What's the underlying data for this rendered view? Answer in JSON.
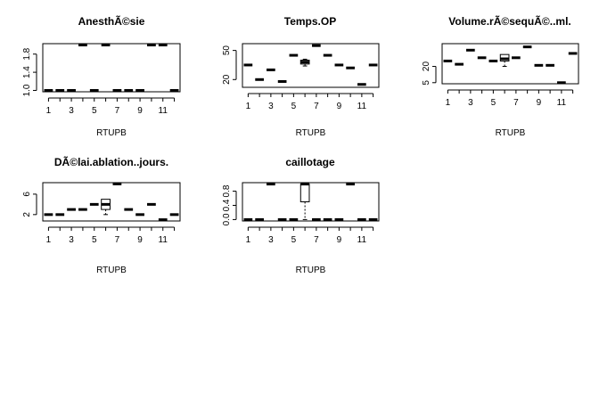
{
  "chart_data": [
    {
      "type": "boxplot",
      "title": "AnesthÃ©sie",
      "xlabel": "RTUPB",
      "ylabel": "",
      "ylim": [
        0.97,
        2.03
      ],
      "yticks": [
        "1.0",
        "1.4",
        "1.8"
      ],
      "xticks": [
        "1",
        "3",
        "5",
        "7",
        "9",
        "11"
      ],
      "categories": [
        "1",
        "2",
        "3",
        "4",
        "5",
        "6",
        "7",
        "8",
        "9",
        "10",
        "11",
        "12"
      ],
      "boxes": [
        {
          "min": 1,
          "q1": 1,
          "median": 1,
          "q3": 1,
          "max": 1
        },
        {
          "min": 1,
          "q1": 1,
          "median": 1,
          "q3": 1,
          "max": 1
        },
        {
          "min": 1,
          "q1": 1,
          "median": 1,
          "q3": 1,
          "max": 1
        },
        {
          "min": 2,
          "q1": 2,
          "median": 2,
          "q3": 2,
          "max": 2
        },
        {
          "min": 1,
          "q1": 1,
          "median": 1,
          "q3": 1,
          "max": 1
        },
        {
          "min": 2,
          "q1": 2,
          "median": 2,
          "q3": 2,
          "max": 2
        },
        {
          "min": 1,
          "q1": 1,
          "median": 1,
          "q3": 1,
          "max": 1
        },
        {
          "min": 1,
          "q1": 1,
          "median": 1,
          "q3": 1,
          "max": 1
        },
        {
          "min": 1,
          "q1": 1,
          "median": 1,
          "q3": 1,
          "max": 1
        },
        {
          "min": 2,
          "q1": 2,
          "median": 2,
          "q3": 2,
          "max": 2
        },
        {
          "min": 2,
          "q1": 2,
          "median": 2,
          "q3": 2,
          "max": 2
        },
        {
          "min": 1,
          "q1": 1,
          "median": 1,
          "q3": 1,
          "max": 1
        }
      ]
    },
    {
      "type": "boxplot",
      "title": "Temps.OP",
      "xlabel": "RTUPB",
      "ylabel": "",
      "ylim": [
        12,
        57
      ],
      "yticks": [
        "20",
        "50"
      ],
      "xticks": [
        "1",
        "3",
        "5",
        "7",
        "9",
        "11"
      ],
      "categories": [
        "1",
        "2",
        "3",
        "4",
        "5",
        "6",
        "7",
        "8",
        "9",
        "10",
        "11",
        "12"
      ],
      "boxes": [
        {
          "min": 35,
          "q1": 35,
          "median": 35,
          "q3": 35,
          "max": 35
        },
        {
          "min": 20,
          "q1": 20,
          "median": 20,
          "q3": 20,
          "max": 20
        },
        {
          "min": 30,
          "q1": 30,
          "median": 30,
          "q3": 30,
          "max": 30
        },
        {
          "min": 18,
          "q1": 18,
          "median": 18,
          "q3": 18,
          "max": 18
        },
        {
          "min": 45,
          "q1": 45,
          "median": 45,
          "q3": 45,
          "max": 45
        },
        {
          "min": 34,
          "q1": 36,
          "median": 38,
          "q3": 40,
          "max": 41
        },
        {
          "min": 55,
          "q1": 55,
          "median": 55,
          "q3": 55,
          "max": 55
        },
        {
          "min": 45,
          "q1": 45,
          "median": 45,
          "q3": 45,
          "max": 45
        },
        {
          "min": 35,
          "q1": 35,
          "median": 35,
          "q3": 35,
          "max": 35
        },
        {
          "min": 32,
          "q1": 32,
          "median": 32,
          "q3": 32,
          "max": 32
        },
        {
          "min": 15,
          "q1": 15,
          "median": 15,
          "q3": 15,
          "max": 15
        },
        {
          "min": 35,
          "q1": 35,
          "median": 35,
          "q3": 35,
          "max": 35
        }
      ]
    },
    {
      "type": "boxplot",
      "title": "Volume.rÃ©sequÃ©..ml.",
      "xlabel": "RTUPB",
      "ylabel": "",
      "ylim": [
        4,
        41
      ],
      "yticks": [
        "5",
        "20"
      ],
      "xticks": [
        "1",
        "3",
        "5",
        "7",
        "9",
        "11"
      ],
      "categories": [
        "1",
        "2",
        "3",
        "4",
        "5",
        "6",
        "7",
        "8",
        "9",
        "10",
        "11",
        "12"
      ],
      "boxes": [
        {
          "min": 25,
          "q1": 25,
          "median": 25,
          "q3": 25,
          "max": 25
        },
        {
          "min": 22,
          "q1": 22,
          "median": 22,
          "q3": 22,
          "max": 22
        },
        {
          "min": 35,
          "q1": 35,
          "median": 35,
          "q3": 35,
          "max": 35
        },
        {
          "min": 28,
          "q1": 28,
          "median": 28,
          "q3": 28,
          "max": 28
        },
        {
          "min": 25,
          "q1": 25,
          "median": 25,
          "q3": 25,
          "max": 25
        },
        {
          "min": 20,
          "q1": 25,
          "median": 27,
          "q3": 31,
          "max": 31
        },
        {
          "min": 28,
          "q1": 28,
          "median": 28,
          "q3": 28,
          "max": 28
        },
        {
          "min": 38,
          "q1": 38,
          "median": 38,
          "q3": 38,
          "max": 38
        },
        {
          "min": 21,
          "q1": 21,
          "median": 21,
          "q3": 21,
          "max": 21
        },
        {
          "min": 21,
          "q1": 21,
          "median": 21,
          "q3": 21,
          "max": 21
        },
        {
          "min": 5,
          "q1": 5,
          "median": 5,
          "q3": 5,
          "max": 5
        },
        {
          "min": 32,
          "q1": 32,
          "median": 32,
          "q3": 32,
          "max": 32
        }
      ]
    },
    {
      "type": "boxplot",
      "title": "DÃ©lai.ablation..jours.",
      "xlabel": "RTUPB",
      "ylabel": "",
      "ylim": [
        0.75,
        8.25
      ],
      "yticks": [
        "2",
        "6"
      ],
      "xticks": [
        "1",
        "3",
        "5",
        "7",
        "9",
        "11"
      ],
      "categories": [
        "1",
        "2",
        "3",
        "4",
        "5",
        "6",
        "7",
        "8",
        "9",
        "10",
        "11",
        "12"
      ],
      "boxes": [
        {
          "min": 2,
          "q1": 2,
          "median": 2,
          "q3": 2,
          "max": 2
        },
        {
          "min": 2,
          "q1": 2,
          "median": 2,
          "q3": 2,
          "max": 2
        },
        {
          "min": 3,
          "q1": 3,
          "median": 3,
          "q3": 3,
          "max": 3
        },
        {
          "min": 3,
          "q1": 3,
          "median": 3,
          "q3": 3,
          "max": 3
        },
        {
          "min": 4,
          "q1": 4,
          "median": 4,
          "q3": 4,
          "max": 4
        },
        {
          "min": 2,
          "q1": 3,
          "median": 4,
          "q3": 5,
          "max": 5
        },
        {
          "min": 8,
          "q1": 8,
          "median": 8,
          "q3": 8,
          "max": 8
        },
        {
          "min": 3,
          "q1": 3,
          "median": 3,
          "q3": 3,
          "max": 3
        },
        {
          "min": 2,
          "q1": 2,
          "median": 2,
          "q3": 2,
          "max": 2
        },
        {
          "min": 4,
          "q1": 4,
          "median": 4,
          "q3": 4,
          "max": 4
        },
        {
          "min": 1,
          "q1": 1,
          "median": 1,
          "q3": 1,
          "max": 1
        },
        {
          "min": 2,
          "q1": 2,
          "median": 2,
          "q3": 2,
          "max": 2
        }
      ]
    },
    {
      "type": "boxplot",
      "title": "caillotage",
      "xlabel": "RTUPB",
      "ylabel": "",
      "ylim": [
        -0.04,
        1.04
      ],
      "yticks": [
        "0.0",
        "0.4",
        "0.8"
      ],
      "xticks": [
        "1",
        "3",
        "5",
        "7",
        "9",
        "11"
      ],
      "categories": [
        "1",
        "2",
        "3",
        "4",
        "5",
        "6",
        "7",
        "8",
        "9",
        "10",
        "11",
        "12"
      ],
      "boxes": [
        {
          "min": 0,
          "q1": 0,
          "median": 0,
          "q3": 0,
          "max": 0
        },
        {
          "min": 0,
          "q1": 0,
          "median": 0,
          "q3": 0,
          "max": 0
        },
        {
          "min": 1,
          "q1": 1,
          "median": 1,
          "q3": 1,
          "max": 1
        },
        {
          "min": 0,
          "q1": 0,
          "median": 0,
          "q3": 0,
          "max": 0
        },
        {
          "min": 0,
          "q1": 0,
          "median": 0,
          "q3": 0,
          "max": 0
        },
        {
          "min": 0,
          "q1": 0.5,
          "median": 1,
          "q3": 1,
          "max": 1
        },
        {
          "min": 0,
          "q1": 0,
          "median": 0,
          "q3": 0,
          "max": 0
        },
        {
          "min": 0,
          "q1": 0,
          "median": 0,
          "q3": 0,
          "max": 0
        },
        {
          "min": 0,
          "q1": 0,
          "median": 0,
          "q3": 0,
          "max": 0
        },
        {
          "min": 1,
          "q1": 1,
          "median": 1,
          "q3": 1,
          "max": 1
        },
        {
          "min": 0,
          "q1": 0,
          "median": 0,
          "q3": 0,
          "max": 0
        },
        {
          "min": 0,
          "q1": 0,
          "median": 0,
          "q3": 0,
          "max": 0
        }
      ]
    }
  ]
}
